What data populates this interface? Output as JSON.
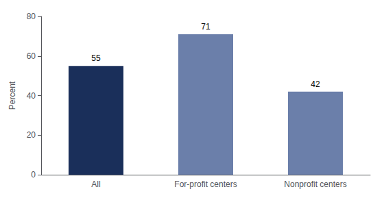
{
  "chart_data": {
    "type": "bar",
    "categories": [
      "All",
      "For-profit centers",
      "Nonprofit centers"
    ],
    "values": [
      55,
      71,
      42
    ],
    "colors": [
      "#1a2f5a",
      "#6b7faa",
      "#6b7faa"
    ],
    "ylabel": "Percent",
    "ylim": [
      0,
      80
    ],
    "yticks": [
      0,
      20,
      40,
      60,
      80
    ],
    "grid": false,
    "data_labels": true
  }
}
